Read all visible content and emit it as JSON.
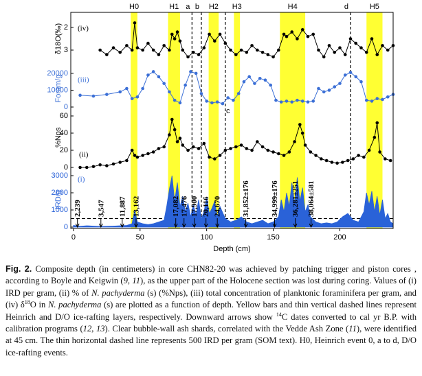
{
  "chart_data": [
    {
      "type": "line",
      "panel_label": "(iv)",
      "ylabel": "δ18O(‰)",
      "y_inverted": true,
      "ylim": [
        1.5,
        3.5
      ],
      "yticks": [
        2,
        3
      ],
      "series": [
        {
          "color": "#000000",
          "x": [
            20,
            25,
            30,
            35,
            40,
            44,
            46,
            48,
            52,
            56,
            60,
            64,
            68,
            72,
            74,
            76,
            78,
            80,
            82,
            86,
            90,
            94,
            98,
            102,
            106,
            110,
            114,
            118,
            122,
            126,
            130,
            134,
            138,
            142,
            146,
            150,
            154,
            158,
            160,
            164,
            168,
            172,
            176,
            180,
            184,
            188,
            192,
            196,
            200,
            204,
            208,
            212,
            216,
            220,
            224,
            228,
            232,
            236,
            240
          ],
          "values": [
            3.0,
            3.2,
            2.9,
            3.1,
            2.8,
            3.0,
            1.8,
            2.9,
            3.0,
            2.7,
            3.0,
            3.2,
            2.8,
            3.0,
            2.3,
            2.5,
            2.2,
            2.6,
            3.0,
            3.3,
            3.1,
            3.2,
            2.9,
            2.3,
            2.6,
            2.3,
            2.7,
            3.0,
            3.2,
            3.0,
            3.1,
            2.8,
            3.0,
            3.1,
            3.2,
            3.3,
            3.0,
            2.3,
            2.4,
            2.2,
            2.5,
            2.1,
            2.4,
            2.3,
            3.0,
            3.3,
            2.8,
            3.1,
            2.9,
            3.2,
            2.5,
            2.7,
            2.9,
            3.1,
            2.5,
            3.2,
            2.8,
            3.0,
            2.8
          ]
        }
      ]
    },
    {
      "type": "line",
      "panel_label": "(iii)",
      "ylabel": "Foram/g",
      "ylim": [
        0,
        22000
      ],
      "yticks": [
        0,
        10000,
        20000
      ],
      "series": [
        {
          "color": "#3b6fd6",
          "x": [
            5,
            15,
            25,
            35,
            40,
            44,
            48,
            52,
            56,
            60,
            64,
            68,
            72,
            76,
            80,
            84,
            88,
            92,
            96,
            100,
            104,
            108,
            112,
            116,
            120,
            124,
            128,
            132,
            136,
            140,
            144,
            148,
            152,
            156,
            160,
            164,
            168,
            172,
            176,
            180,
            184,
            188,
            192,
            196,
            200,
            204,
            208,
            212,
            216,
            220,
            224,
            228,
            232,
            236,
            240
          ],
          "values": [
            7000,
            6500,
            7500,
            9000,
            11000,
            5000,
            6000,
            11000,
            19000,
            21000,
            18000,
            14000,
            9000,
            4000,
            2500,
            13000,
            21000,
            20000,
            8000,
            3500,
            2500,
            3000,
            2000,
            5500,
            4000,
            8000,
            15000,
            18000,
            14000,
            17000,
            16000,
            13000,
            4000,
            3000,
            3500,
            3000,
            4000,
            3500,
            3000,
            3500,
            11000,
            9000,
            10000,
            12000,
            14000,
            19000,
            20500,
            18000,
            15000,
            4000,
            3500,
            5000,
            4500,
            6000,
            7500
          ]
        }
      ]
    },
    {
      "type": "line",
      "panel_label": "(ii)",
      "ylabel": "%Nps",
      "ylim": [
        0,
        70
      ],
      "yticks": [
        0,
        20,
        40,
        60
      ],
      "series": [
        {
          "color": "#000000",
          "x": [
            5,
            10,
            15,
            20,
            25,
            30,
            35,
            40,
            44,
            46,
            48,
            52,
            56,
            60,
            64,
            68,
            72,
            74,
            76,
            78,
            80,
            82,
            86,
            90,
            94,
            98,
            102,
            106,
            110,
            114,
            118,
            122,
            126,
            130,
            134,
            138,
            142,
            146,
            150,
            154,
            158,
            162,
            166,
            170,
            172,
            174,
            178,
            182,
            186,
            190,
            194,
            198,
            202,
            206,
            210,
            214,
            218,
            222,
            226,
            228,
            230,
            234,
            238
          ],
          "values": [
            0,
            0,
            1,
            3,
            2,
            4,
            6,
            8,
            20,
            14,
            12,
            14,
            16,
            18,
            22,
            24,
            38,
            56,
            44,
            30,
            34,
            26,
            20,
            24,
            22,
            28,
            12,
            10,
            14,
            20,
            22,
            24,
            26,
            22,
            20,
            30,
            24,
            20,
            18,
            16,
            14,
            18,
            30,
            50,
            40,
            26,
            18,
            14,
            10,
            8,
            6,
            5,
            6,
            8,
            10,
            14,
            12,
            20,
            35,
            52,
            18,
            10,
            8
          ]
        }
      ]
    },
    {
      "type": "area",
      "panel_label": "(i)",
      "ylabel": "IRD/g",
      "ylim": [
        0,
        3200
      ],
      "yticks": [
        0,
        1000,
        2000,
        3000
      ],
      "reference_line": 500,
      "xlabel": "Depth (cm)",
      "xlim": [
        -2,
        240
      ],
      "xticks": [
        0,
        50,
        100,
        150,
        200
      ],
      "series": [
        {
          "color": "#2a62d8",
          "x": [
            0,
            5,
            10,
            15,
            20,
            25,
            30,
            35,
            40,
            44,
            46,
            48,
            52,
            56,
            60,
            64,
            68,
            70,
            72,
            74,
            76,
            78,
            80,
            82,
            84,
            86,
            88,
            90,
            92,
            94,
            96,
            98,
            100,
            102,
            104,
            106,
            108,
            110,
            114,
            118,
            122,
            126,
            130,
            134,
            138,
            142,
            146,
            150,
            154,
            156,
            158,
            160,
            162,
            164,
            166,
            168,
            170,
            172,
            174,
            176,
            178,
            182,
            186,
            190,
            194,
            198,
            202,
            206,
            210,
            214,
            218,
            220,
            222,
            224,
            226,
            228,
            230,
            232,
            234,
            236,
            238,
            240
          ],
          "values": [
            100,
            50,
            80,
            60,
            40,
            50,
            60,
            80,
            100,
            200,
            1000,
            300,
            200,
            150,
            200,
            300,
            400,
            1200,
            2200,
            3000,
            1500,
            2600,
            1200,
            1800,
            900,
            1400,
            600,
            1300,
            700,
            1600,
            500,
            900,
            1700,
            800,
            1100,
            1500,
            600,
            1200,
            500,
            300,
            400,
            600,
            300,
            200,
            300,
            400,
            200,
            300,
            600,
            1600,
            900,
            2000,
            1200,
            2600,
            1400,
            2900,
            1500,
            2300,
            900,
            1300,
            600,
            300,
            200,
            250,
            200,
            300,
            600,
            800,
            400,
            300,
            900,
            2000,
            1300,
            2100,
            900,
            1800,
            700,
            1600,
            500,
            800,
            300,
            200
          ]
        }
      ]
    }
  ],
  "events": {
    "band_color": "#ffff33",
    "bands": [
      {
        "label": "H0",
        "from": 43,
        "to": 48
      },
      {
        "label": "H1",
        "from": 71,
        "to": 80
      },
      {
        "label": "H2",
        "from": 101.5,
        "to": 109
      },
      {
        "label": "H3",
        "from": 120.5,
        "to": 125
      },
      {
        "label": "H4",
        "from": 155,
        "to": 174
      },
      {
        "label": "H5",
        "from": 220,
        "to": 232
      }
    ],
    "lines": [
      {
        "label": "a",
        "depth": 89
      },
      {
        "label": "b",
        "depth": 96
      },
      {
        "label": "c",
        "depth": 114
      },
      {
        "label": "d",
        "depth": 208
      }
    ]
  },
  "dates": [
    {
      "label": "2,239",
      "depth": 3
    },
    {
      "label": "3,547",
      "depth": 20.6
    },
    {
      "label": "11,887",
      "depth": 36.6
    },
    {
      "label": "13,162",
      "depth": 47
    },
    {
      "label": "17,082",
      "depth": 76.8
    },
    {
      "label": "17,476",
      "depth": 83
    },
    {
      "label": "17,900",
      "depth": 90.7
    },
    {
      "label": "20,116",
      "depth": 99.5
    },
    {
      "label": "24,670",
      "depth": 108
    },
    {
      "label": "31,852±176",
      "depth": 129.4
    },
    {
      "label": "34,999±176",
      "depth": 151
    },
    {
      "label": "36,281±251",
      "depth": 166.5
    },
    {
      "label": "38,064±581",
      "depth": 178.4
    }
  ],
  "caption": {
    "segments": [
      "Fig. 2.",
      " Composite depth (in centimeters) in core CHN82-20 was achieved by patching trigger and piston cores , according to Boyle and Keigwin (",
      "9, 11",
      "), as the upper part of the Holocene section was lost during coring. Values of (i) IRD per gram, (ii) % of ",
      "N. pachyderma",
      " (s) (%Nps), (iii) total concentration of planktonic foraminifera per gram, and (iv) δ",
      "18",
      "O in ",
      "N. pachyderma",
      " (s) are plotted as a function of depth. Yellow bars and thin vertical dashed lines represent Heinrich and D/O ice-rafting layers, respectively. Downward arrows show ",
      "14",
      "C dates converted to cal yr B.P. with calibration programs (",
      "12, 13",
      "). Clear bubble-wall ash shards, correlated with the Vedde Ash Zone (",
      "11",
      "), were identified at 45 cm. The thin horizontal dashed line represents 500 IRD per gram (SOM text). H0, Heinrich event 0, a to d, D/O ice-rafting events."
    ]
  }
}
